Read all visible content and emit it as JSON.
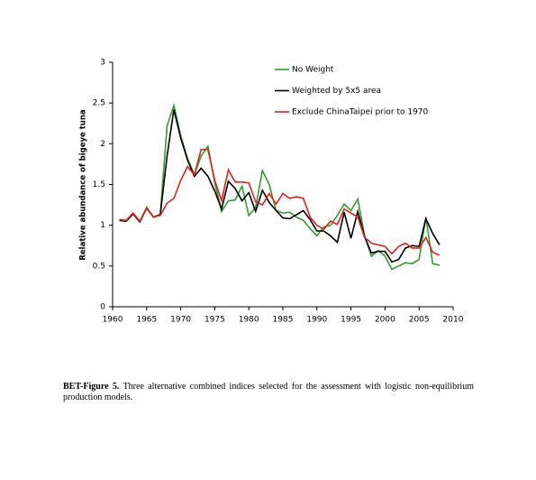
{
  "chart_data": {
    "type": "line",
    "y_label": "Relative abundance of bigeye tuna",
    "x": [
      1961,
      1962,
      1963,
      1964,
      1965,
      1966,
      1967,
      1968,
      1969,
      1970,
      1971,
      1972,
      1973,
      1974,
      1975,
      1976,
      1977,
      1978,
      1979,
      1980,
      1981,
      1982,
      1983,
      1984,
      1985,
      1986,
      1987,
      1988,
      1989,
      1990,
      1991,
      1992,
      1993,
      1994,
      1995,
      1996,
      1997,
      1998,
      1999,
      2000,
      2001,
      2002,
      2003,
      2004,
      2005,
      2006,
      2007,
      2008
    ],
    "series": [
      {
        "name": "No Weight",
        "color": "#2ca02c",
        "values": [
          1.06,
          1.05,
          1.14,
          1.05,
          1.22,
          1.1,
          1.13,
          2.22,
          2.47,
          2.1,
          1.82,
          1.62,
          1.85,
          1.97,
          1.52,
          1.17,
          1.3,
          1.31,
          1.48,
          1.12,
          1.22,
          1.67,
          1.5,
          1.18,
          1.15,
          1.16,
          1.1,
          1.06,
          0.96,
          0.87,
          0.98,
          1.0,
          1.12,
          1.26,
          1.18,
          1.32,
          0.87,
          0.62,
          0.69,
          0.62,
          0.46,
          0.5,
          0.54,
          0.53,
          0.58,
          1.1,
          0.53,
          0.51
        ]
      },
      {
        "name": "Weighted by 5x5 area",
        "color": "#000000",
        "values": [
          1.06,
          1.05,
          1.14,
          1.04,
          1.21,
          1.1,
          1.13,
          1.85,
          2.42,
          2.07,
          1.8,
          1.6,
          1.7,
          1.6,
          1.42,
          1.2,
          1.54,
          1.45,
          1.3,
          1.4,
          1.17,
          1.43,
          1.28,
          1.18,
          1.09,
          1.08,
          1.13,
          1.18,
          1.07,
          0.93,
          0.93,
          0.87,
          0.79,
          1.16,
          0.84,
          1.17,
          0.86,
          0.66,
          0.68,
          0.68,
          0.55,
          0.58,
          0.72,
          0.75,
          0.74,
          1.08,
          0.9,
          0.76
        ]
      },
      {
        "name": "Exclude ChinaTaipei prior to 1970",
        "color": "#e8201c",
        "values": [
          1.07,
          1.06,
          1.15,
          1.05,
          1.21,
          1.1,
          1.12,
          1.27,
          1.33,
          1.55,
          1.72,
          1.62,
          1.93,
          1.93,
          1.55,
          1.3,
          1.68,
          1.53,
          1.53,
          1.52,
          1.29,
          1.25,
          1.39,
          1.26,
          1.39,
          1.33,
          1.35,
          1.33,
          1.1,
          1.0,
          0.95,
          1.05,
          1.01,
          1.2,
          1.15,
          1.1,
          0.85,
          0.78,
          0.76,
          0.74,
          0.65,
          0.74,
          0.78,
          0.72,
          0.72,
          0.85,
          0.67,
          0.63
        ]
      }
    ],
    "xlim": [
      1960,
      2010
    ],
    "xticks": [
      1960,
      1965,
      1970,
      1975,
      1980,
      1985,
      1990,
      1995,
      2000,
      2005,
      2010
    ],
    "ylim": [
      0,
      3
    ],
    "yticks": [
      0,
      0.5,
      1,
      1.5,
      2,
      2.5,
      3
    ],
    "grid": false,
    "legend": "upper-center"
  },
  "caption": {
    "label": "BET-Figure 5.",
    "text": "Three alternative combined indices selected for the assessment with logistic non-equilibrium production models."
  }
}
